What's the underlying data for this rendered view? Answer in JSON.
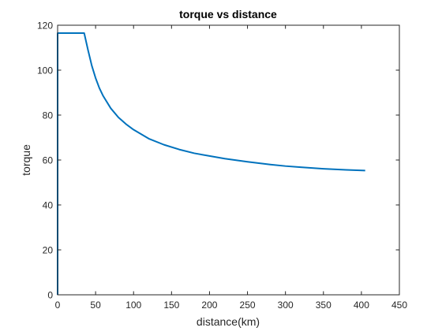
{
  "chart_data": {
    "type": "line",
    "title": "torque vs distance",
    "xlabel": "distance(km)",
    "ylabel": "torque",
    "xlim": [
      0,
      450
    ],
    "ylim": [
      0,
      120
    ],
    "xticks": [
      0,
      50,
      100,
      150,
      200,
      250,
      300,
      350,
      400,
      450
    ],
    "yticks": [
      0,
      20,
      40,
      60,
      80,
      100,
      120
    ],
    "grid": false,
    "legend": "none",
    "series": [
      {
        "color": "#0072BD",
        "x": [
          0,
          0,
          5,
          10,
          20,
          30,
          35,
          40,
          45,
          50,
          55,
          60,
          70,
          80,
          90,
          100,
          120,
          140,
          160,
          180,
          200,
          220,
          250,
          280,
          300,
          320,
          350,
          380,
          405
        ],
        "y": [
          0,
          116.5,
          116.5,
          116.5,
          116.5,
          116.5,
          116.5,
          109,
          102,
          96.5,
          92,
          88.5,
          83,
          79,
          76,
          73.5,
          69.5,
          66.8,
          64.7,
          63.0,
          61.8,
          60.6,
          59.2,
          58.0,
          57.3,
          56.8,
          56.1,
          55.6,
          55.3
        ]
      }
    ]
  }
}
